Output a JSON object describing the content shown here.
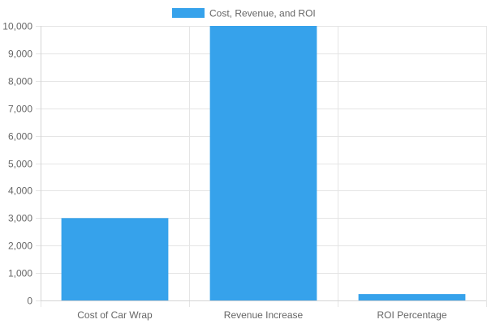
{
  "chart_data": {
    "type": "bar",
    "categories": [
      "Cost of Car Wrap",
      "Revenue Increase",
      "ROI Percentage"
    ],
    "series": [
      {
        "name": "Cost, Revenue, and ROI",
        "values": [
          3000,
          10000,
          233
        ],
        "color": "#36a2eb"
      }
    ],
    "ylim": [
      0,
      10000
    ],
    "yticks": [
      0,
      1000,
      2000,
      3000,
      4000,
      5000,
      6000,
      7000,
      8000,
      9000,
      10000
    ],
    "ytick_labels": [
      "0",
      "1,000",
      "2,000",
      "3,000",
      "4,000",
      "5,000",
      "6,000",
      "7,000",
      "8,000",
      "9,000",
      "10,000"
    ],
    "grid": true,
    "legend_position": "top-center",
    "grid_color": "#e5e5e5",
    "axis_text_color": "#666666"
  }
}
